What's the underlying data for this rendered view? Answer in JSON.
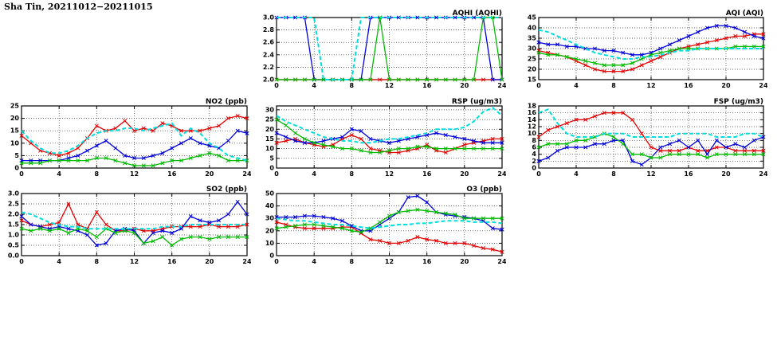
{
  "page_title": "Sha Tin, 20211012−20211015",
  "x_hours": [
    0,
    1,
    2,
    3,
    4,
    5,
    6,
    7,
    8,
    9,
    10,
    11,
    12,
    13,
    14,
    15,
    16,
    17,
    18,
    19,
    20,
    21,
    22,
    23,
    24
  ],
  "colors": {
    "red": "#e60000",
    "blue": "#0000dd",
    "green": "#00bb00",
    "cyan": "#00dddd"
  },
  "chart_data": [
    {
      "id": "aqhi",
      "type": "line",
      "title": "AQHI (AQHI)",
      "xlabel": "",
      "ylabel": "AQHI",
      "xlim": [
        0,
        24
      ],
      "ylim": [
        2.0,
        3.0
      ],
      "xticks": [
        0,
        4,
        8,
        12,
        16,
        20,
        24
      ],
      "yticks": [
        2.0,
        2.2,
        2.4,
        2.6,
        2.8,
        3.0
      ],
      "ytick_labels": [
        "2.0",
        "2.2",
        "2.4",
        "2.6",
        "2.8",
        "3.0"
      ],
      "grid": true,
      "series": [
        {
          "name": "red",
          "color": "#e60000",
          "style": "solid",
          "values": [
            2.0,
            2.0,
            2.0,
            2.0,
            2.0,
            2.0,
            2.0,
            2.0,
            2.0,
            2.0,
            2.0,
            2.0,
            2.0,
            2.0,
            2.0,
            2.0,
            2.0,
            2.0,
            2.0,
            2.0,
            2.0,
            2.0,
            2.0,
            2.0,
            2.0
          ]
        },
        {
          "name": "blue",
          "color": "#0000dd",
          "style": "solid",
          "values": [
            3.0,
            3.0,
            3.0,
            3.0,
            2.0,
            2.0,
            2.0,
            2.0,
            2.0,
            2.0,
            3.0,
            3.0,
            3.0,
            3.0,
            3.0,
            3.0,
            3.0,
            3.0,
            3.0,
            3.0,
            3.0,
            3.0,
            3.0,
            2.0,
            2.0
          ]
        },
        {
          "name": "green",
          "color": "#00bb00",
          "style": "solid",
          "values": [
            2.0,
            2.0,
            2.0,
            2.0,
            2.0,
            2.0,
            2.0,
            2.0,
            2.0,
            2.0,
            2.0,
            3.0,
            2.0,
            2.0,
            2.0,
            2.0,
            2.0,
            2.0,
            2.0,
            2.0,
            2.0,
            2.0,
            3.0,
            3.0,
            2.0
          ]
        },
        {
          "name": "cyan",
          "color": "#00dddd",
          "style": "dashed",
          "values": [
            3.0,
            3.0,
            3.0,
            3.0,
            3.0,
            2.0,
            2.0,
            2.0,
            2.0,
            3.0,
            3.0,
            3.0,
            3.0,
            3.0,
            3.0,
            3.0,
            3.0,
            3.0,
            3.0,
            3.0,
            3.0,
            3.0,
            3.0,
            3.0,
            3.0
          ]
        }
      ]
    },
    {
      "id": "aqi",
      "type": "line",
      "title": "AQI (AQI)",
      "xlabel": "",
      "ylabel": "AQI",
      "xlim": [
        0,
        24
      ],
      "ylim": [
        15,
        45
      ],
      "xticks": [
        0,
        4,
        8,
        12,
        16,
        20,
        24
      ],
      "yticks": [
        15,
        20,
        25,
        30,
        35,
        40,
        45
      ],
      "grid": true,
      "series": [
        {
          "name": "red",
          "color": "#e60000",
          "style": "solid",
          "values": [
            29,
            28,
            27,
            26,
            24,
            22,
            20,
            19,
            19,
            19,
            20,
            22,
            24,
            26,
            28,
            30,
            31,
            32,
            33,
            34,
            35,
            36,
            36,
            37,
            37
          ]
        },
        {
          "name": "blue",
          "color": "#0000dd",
          "style": "solid",
          "values": [
            33,
            32,
            32,
            31,
            31,
            30,
            30,
            29,
            29,
            28,
            27,
            27,
            28,
            30,
            32,
            34,
            36,
            38,
            40,
            41,
            41,
            40,
            38,
            36,
            35
          ]
        },
        {
          "name": "green",
          "color": "#00bb00",
          "style": "solid",
          "values": [
            28,
            27,
            27,
            26,
            25,
            24,
            23,
            22,
            22,
            22,
            23,
            25,
            27,
            28,
            29,
            30,
            30,
            30,
            30,
            30,
            30,
            31,
            31,
            31,
            31
          ]
        },
        {
          "name": "cyan",
          "color": "#00dddd",
          "style": "dashed",
          "values": [
            39,
            38,
            36,
            34,
            32,
            30,
            28,
            27,
            26,
            25,
            25,
            26,
            26,
            27,
            28,
            29,
            29,
            30,
            30,
            30,
            30,
            30,
            30,
            30,
            30
          ]
        }
      ]
    },
    {
      "id": "no2",
      "type": "line",
      "title": "NO2 (ppb)",
      "xlabel": "",
      "ylabel": "ppb",
      "xlim": [
        0,
        24
      ],
      "ylim": [
        0,
        25
      ],
      "xticks": [
        0,
        4,
        8,
        12,
        16,
        20,
        24
      ],
      "yticks": [
        0,
        5,
        10,
        15,
        20,
        25
      ],
      "grid": true,
      "series": [
        {
          "name": "red",
          "color": "#e60000",
          "style": "solid",
          "values": [
            13,
            10,
            7,
            6,
            5,
            6,
            8,
            12,
            17,
            15,
            16,
            19,
            15,
            16,
            15,
            18,
            17,
            15,
            15,
            15,
            16,
            17,
            20,
            21,
            20
          ]
        },
        {
          "name": "blue",
          "color": "#0000dd",
          "style": "solid",
          "values": [
            3,
            3,
            3,
            3,
            3,
            4,
            5,
            7,
            9,
            11,
            8,
            5,
            4,
            4,
            5,
            6,
            8,
            10,
            12,
            10,
            9,
            8,
            11,
            15,
            14
          ]
        },
        {
          "name": "green",
          "color": "#00bb00",
          "style": "solid",
          "values": [
            2,
            2,
            2,
            3,
            3,
            3,
            3,
            3,
            4,
            4,
            3,
            2,
            1,
            1,
            1,
            2,
            3,
            3,
            4,
            5,
            6,
            5,
            3,
            3,
            3
          ]
        },
        {
          "name": "cyan",
          "color": "#00dddd",
          "style": "dashed",
          "values": [
            15,
            11,
            8,
            6,
            6,
            7,
            9,
            12,
            14,
            15,
            15,
            16,
            16,
            15,
            16,
            17,
            18,
            13,
            16,
            14,
            10,
            8,
            5,
            4,
            3
          ]
        }
      ]
    },
    {
      "id": "rsp",
      "type": "line",
      "title": "RSP (ug/m3)",
      "xlabel": "",
      "ylabel": "ug/m3",
      "xlim": [
        0,
        24
      ],
      "ylim": [
        0,
        32
      ],
      "xticks": [
        0,
        4,
        8,
        12,
        16,
        20,
        24
      ],
      "yticks": [
        0,
        5,
        10,
        15,
        20,
        25,
        30
      ],
      "grid": true,
      "series": [
        {
          "name": "red",
          "color": "#e60000",
          "style": "solid",
          "values": [
            13,
            14,
            15,
            13,
            12,
            11,
            12,
            15,
            17,
            15,
            10,
            9,
            8,
            8,
            9,
            10,
            12,
            9,
            8,
            10,
            12,
            13,
            14,
            15,
            15
          ]
        },
        {
          "name": "blue",
          "color": "#0000dd",
          "style": "solid",
          "values": [
            18,
            16,
            14,
            13,
            13,
            14,
            15,
            16,
            20,
            19,
            15,
            14,
            13,
            14,
            15,
            16,
            17,
            18,
            17,
            16,
            15,
            14,
            13,
            13,
            13
          ]
        },
        {
          "name": "green",
          "color": "#00bb00",
          "style": "solid",
          "values": [
            25,
            22,
            18,
            15,
            13,
            12,
            11,
            10,
            10,
            9,
            8,
            8,
            9,
            10,
            10,
            11,
            11,
            10,
            10,
            10,
            10,
            10,
            10,
            10,
            10
          ]
        },
        {
          "name": "cyan",
          "color": "#00dddd",
          "style": "dashed",
          "values": [
            27,
            24,
            22,
            20,
            18,
            16,
            15,
            14,
            14,
            13,
            13,
            14,
            15,
            15,
            16,
            17,
            18,
            20,
            20,
            20,
            21,
            24,
            29,
            31,
            27
          ]
        }
      ]
    },
    {
      "id": "fsp",
      "type": "line",
      "title": "FSP (ug/m3)",
      "xlabel": "",
      "ylabel": "ug/m3",
      "xlim": [
        0,
        24
      ],
      "ylim": [
        0,
        18
      ],
      "xticks": [
        0,
        4,
        8,
        12,
        16,
        20,
        24
      ],
      "yticks": [
        0,
        2,
        4,
        6,
        8,
        10,
        12,
        14,
        16,
        18
      ],
      "grid": true,
      "series": [
        {
          "name": "red",
          "color": "#e60000",
          "style": "solid",
          "values": [
            9,
            11,
            12,
            13,
            14,
            14,
            15,
            16,
            16,
            16,
            14,
            10,
            6,
            5,
            5,
            5,
            6,
            5,
            5,
            6,
            6,
            5,
            5,
            5,
            5
          ]
        },
        {
          "name": "blue",
          "color": "#0000dd",
          "style": "solid",
          "values": [
            2,
            3,
            5,
            6,
            6,
            6,
            7,
            7,
            8,
            8,
            2,
            1,
            3,
            6,
            7,
            8,
            6,
            8,
            4,
            8,
            6,
            7,
            6,
            8,
            9
          ]
        },
        {
          "name": "green",
          "color": "#00bb00",
          "style": "solid",
          "values": [
            6,
            7,
            7,
            7,
            8,
            8,
            9,
            10,
            9,
            7,
            4,
            4,
            3,
            3,
            4,
            4,
            4,
            4,
            3,
            4,
            4,
            4,
            4,
            4,
            4
          ]
        },
        {
          "name": "cyan",
          "color": "#00dddd",
          "style": "dashed",
          "values": [
            16,
            17,
            13,
            10,
            9,
            9,
            9,
            10,
            10,
            10,
            9,
            9,
            9,
            9,
            9,
            10,
            10,
            10,
            10,
            9,
            9,
            9,
            10,
            10,
            9
          ]
        }
      ]
    },
    {
      "id": "so2",
      "type": "line",
      "title": "SO2 (ppb)",
      "xlabel": "",
      "ylabel": "ppb",
      "xlim": [
        0,
        24
      ],
      "ylim": [
        0.0,
        3.0
      ],
      "xticks": [
        0,
        4,
        8,
        12,
        16,
        20,
        24
      ],
      "yticks": [
        0.0,
        0.5,
        1.0,
        1.5,
        2.0,
        2.5,
        3.0
      ],
      "ytick_labels": [
        "0.0",
        "0.5",
        "1.0",
        "1.5",
        "2.0",
        "2.5",
        "3.0"
      ],
      "grid": true,
      "series": [
        {
          "name": "red",
          "color": "#e60000",
          "style": "solid",
          "values": [
            1.7,
            1.5,
            1.4,
            1.5,
            1.6,
            2.5,
            1.5,
            1.3,
            2.1,
            1.5,
            1.2,
            1.2,
            1.3,
            1.2,
            1.2,
            1.3,
            1.4,
            1.4,
            1.4,
            1.4,
            1.5,
            1.4,
            1.4,
            1.4,
            1.5
          ]
        },
        {
          "name": "blue",
          "color": "#0000dd",
          "style": "solid",
          "values": [
            1.9,
            1.5,
            1.4,
            1.3,
            1.4,
            1.3,
            1.2,
            1.0,
            0.5,
            0.6,
            1.2,
            1.3,
            1.2,
            0.6,
            1.1,
            1.2,
            1.1,
            1.3,
            1.9,
            1.7,
            1.6,
            1.7,
            2.0,
            2.6,
            2.0
          ]
        },
        {
          "name": "green",
          "color": "#00bb00",
          "style": "solid",
          "values": [
            1.3,
            1.2,
            1.3,
            1.2,
            1.3,
            1.1,
            1.3,
            1.2,
            0.9,
            1.3,
            1.1,
            1.2,
            1.1,
            0.6,
            0.7,
            0.9,
            0.5,
            0.8,
            0.9,
            0.9,
            0.8,
            0.9,
            0.9,
            0.9,
            0.9
          ]
        },
        {
          "name": "cyan",
          "color": "#00dddd",
          "style": "dashed",
          "values": [
            2.1,
            2.0,
            1.8,
            1.6,
            1.5,
            1.4,
            1.4,
            1.3,
            1.3,
            1.3,
            1.3,
            1.3,
            1.3,
            1.3,
            1.3,
            1.4,
            1.4,
            1.4,
            1.5,
            1.5,
            1.5,
            1.5,
            1.5,
            1.5,
            1.5
          ]
        }
      ]
    },
    {
      "id": "o3",
      "type": "line",
      "title": "O3 (ppb)",
      "xlabel": "",
      "ylabel": "ppb",
      "xlim": [
        0,
        24
      ],
      "ylim": [
        0,
        50
      ],
      "xticks": [
        0,
        4,
        8,
        12,
        16,
        20,
        24
      ],
      "yticks": [
        0,
        10,
        20,
        30,
        40,
        50
      ],
      "grid": true,
      "series": [
        {
          "name": "red",
          "color": "#e60000",
          "style": "solid",
          "values": [
            27,
            25,
            23,
            22,
            22,
            22,
            22,
            23,
            23,
            18,
            13,
            12,
            10,
            10,
            12,
            15,
            13,
            12,
            10,
            10,
            10,
            8,
            6,
            5,
            3
          ]
        },
        {
          "name": "blue",
          "color": "#0000dd",
          "style": "solid",
          "values": [
            31,
            31,
            31,
            32,
            32,
            31,
            30,
            28,
            24,
            20,
            20,
            25,
            30,
            35,
            47,
            48,
            43,
            35,
            33,
            32,
            31,
            30,
            28,
            22,
            21
          ]
        },
        {
          "name": "green",
          "color": "#00bb00",
          "style": "solid",
          "values": [
            22,
            23,
            24,
            25,
            25,
            24,
            23,
            22,
            20,
            19,
            22,
            27,
            32,
            35,
            36,
            37,
            36,
            35,
            34,
            33,
            30,
            30,
            30,
            30,
            30
          ]
        },
        {
          "name": "cyan",
          "color": "#00dddd",
          "style": "dashed",
          "values": [
            30,
            29,
            28,
            28,
            27,
            26,
            25,
            25,
            24,
            23,
            22,
            23,
            24,
            25,
            25,
            26,
            26,
            27,
            28,
            28,
            28,
            27,
            27,
            27,
            26
          ]
        }
      ]
    }
  ]
}
